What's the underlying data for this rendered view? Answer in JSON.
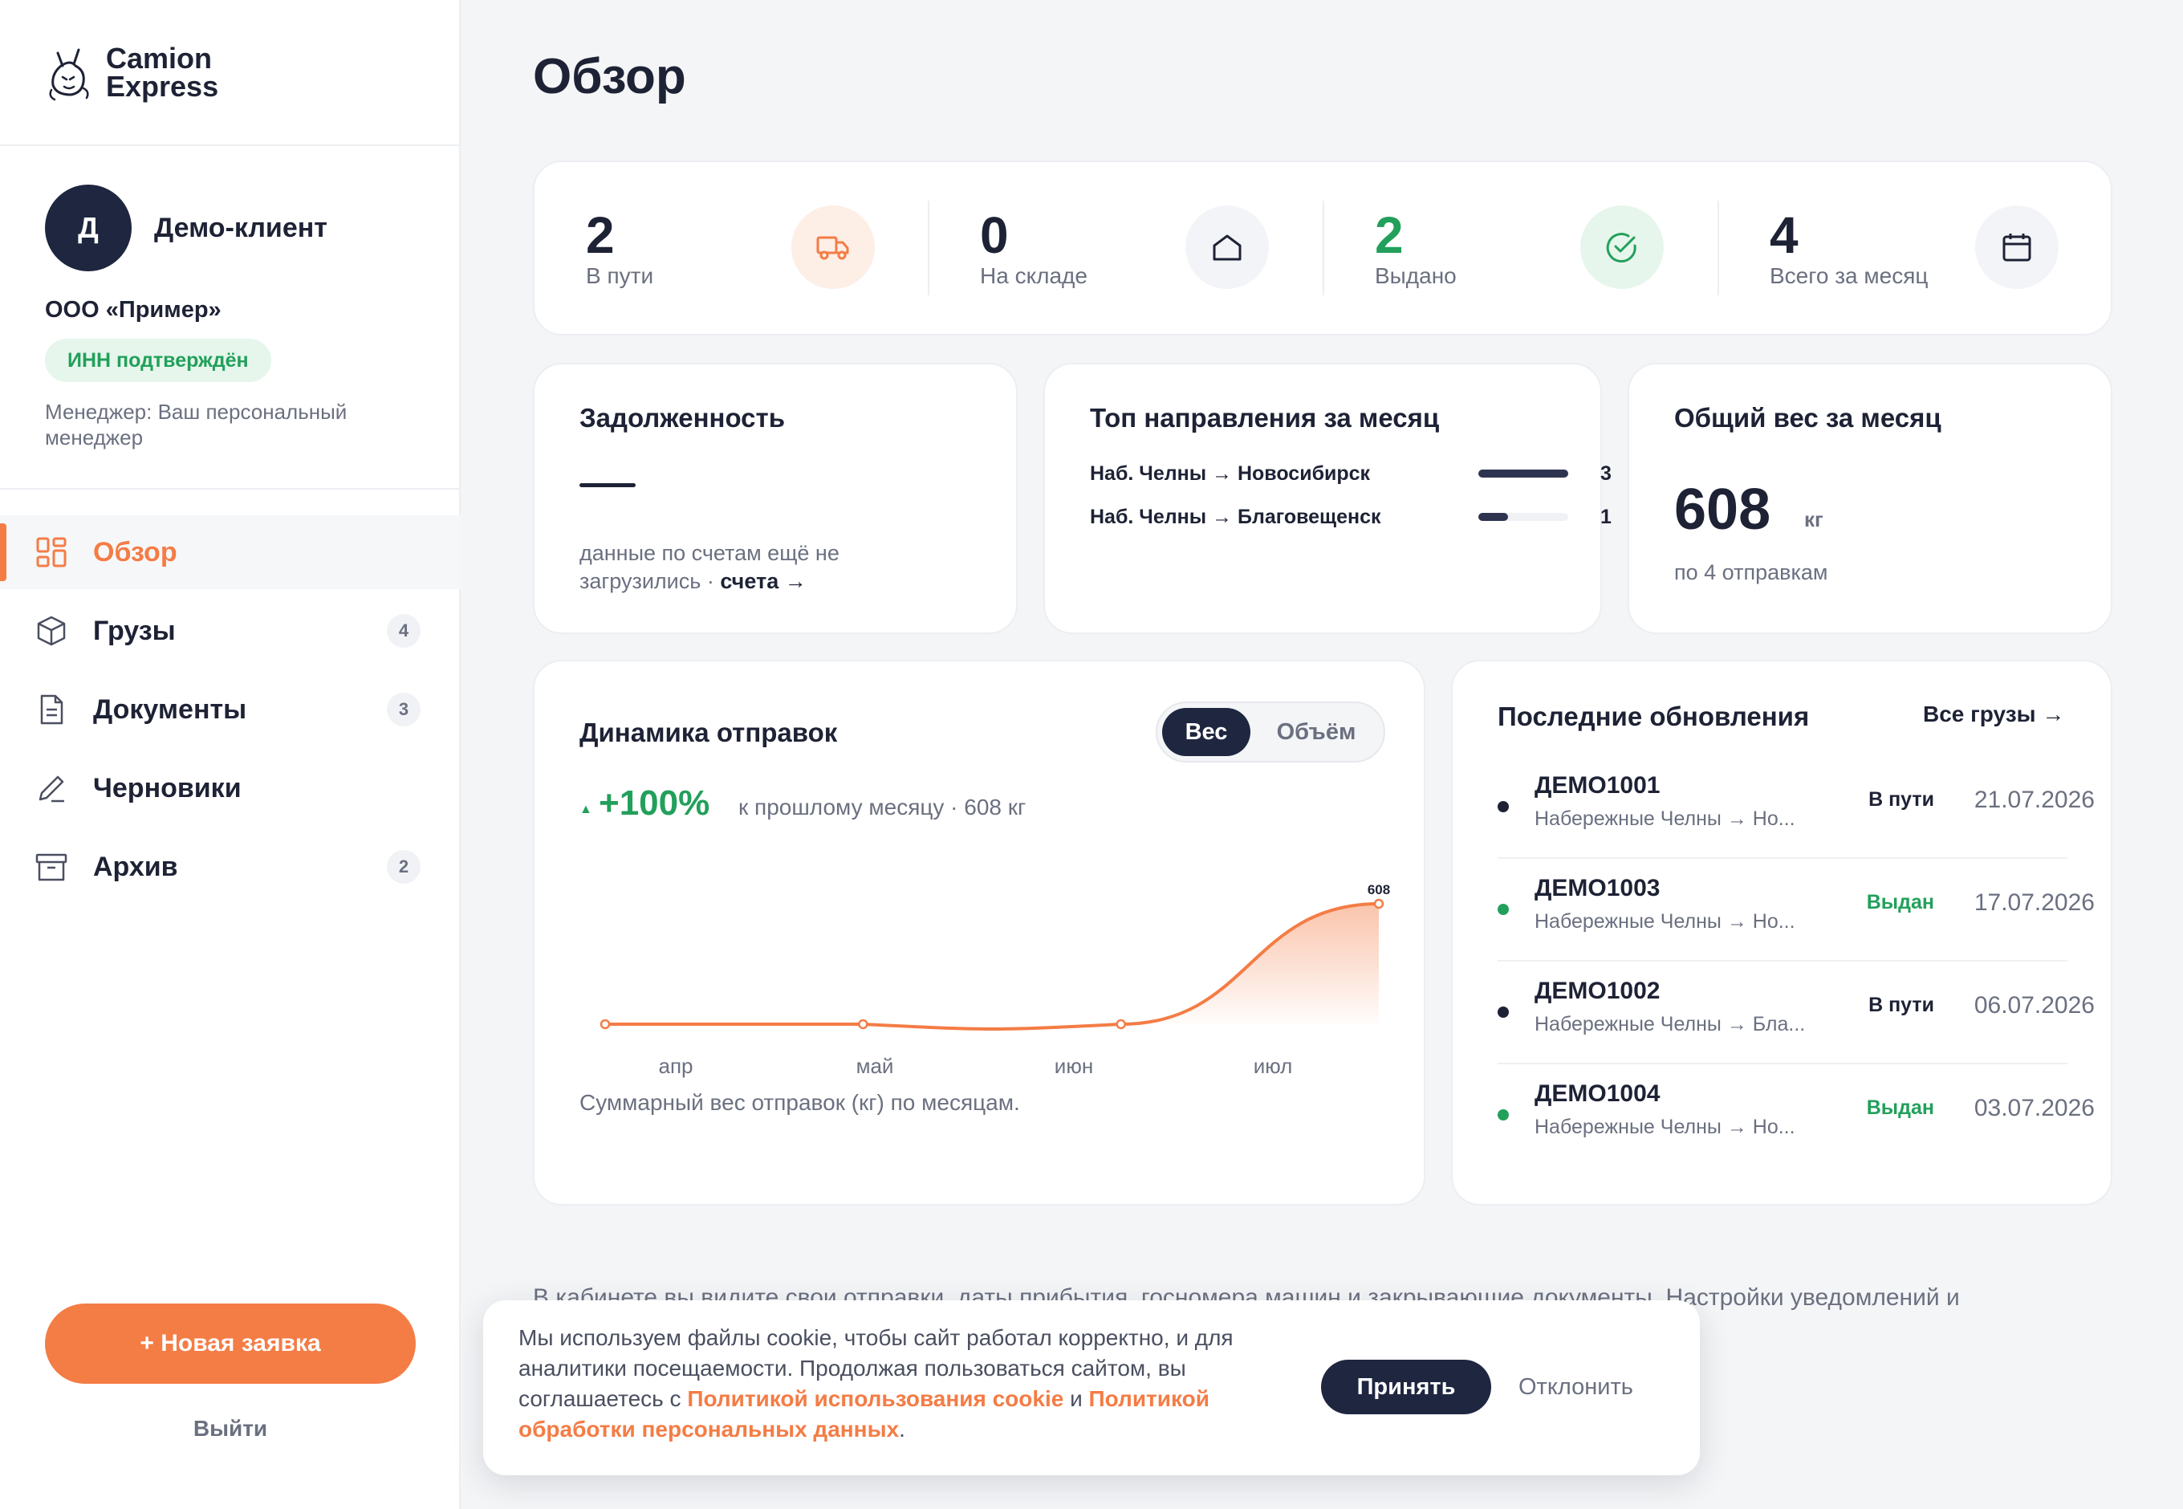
{
  "app": {
    "brand_line1": "Camion",
    "brand_line2": "Express"
  },
  "profile": {
    "avatar_letter": "Д",
    "name": "Демо-клиент",
    "company": "ООО «Пример»",
    "inn_badge": "ИНН подтверждён",
    "manager": "Менеджер: Ваш персональный менеджер"
  },
  "nav": [
    {
      "label": "Обзор",
      "icon": "dashboard-icon",
      "active": true,
      "count": null
    },
    {
      "label": "Грузы",
      "icon": "box-icon",
      "active": false,
      "count": "4"
    },
    {
      "label": "Документы",
      "icon": "document-icon",
      "active": false,
      "count": "3"
    },
    {
      "label": "Черновики",
      "icon": "pencil-icon",
      "active": false,
      "count": null
    },
    {
      "label": "Архив",
      "icon": "archive-icon",
      "active": false,
      "count": "2"
    }
  ],
  "sidebar": {
    "new_request": "+ Новая заявка",
    "logout": "Выйти"
  },
  "page": {
    "title": "Обзор"
  },
  "stats": [
    {
      "value": "2",
      "label": "В пути",
      "icon": "truck-icon",
      "color": "#f47c45"
    },
    {
      "value": "0",
      "label": "На складе",
      "icon": "warehouse-icon",
      "color": "#1e2235"
    },
    {
      "value": "2",
      "label": "Выдано",
      "icon": "check-circle-icon",
      "color": "#22a05b"
    },
    {
      "value": "4",
      "label": "Всего за месяц",
      "icon": "calendar-icon",
      "color": "#1e2235"
    }
  ],
  "debt": {
    "title": "Задолженность",
    "value": "—",
    "note": "данные по счетам ещё не загрузились · ",
    "link": "счета →"
  },
  "routes": {
    "title": "Топ направления за месяц",
    "items": [
      {
        "name": "Наб. Челны → Новосибирск",
        "count": 3,
        "count_label": "3"
      },
      {
        "name": "Наб. Челны → Благовещенск",
        "count": 1,
        "count_label": "1"
      }
    ]
  },
  "weight": {
    "title": "Общий вес за месяц",
    "value": "608",
    "unit": "кг",
    "sub": "по 4 отправкам"
  },
  "dynamics": {
    "title": "Динамика отправок",
    "toggle_weight": "Вес",
    "toggle_volume": "Объём",
    "growth": "+100%",
    "growth_note": "к прошлому месяцу · 608 кг",
    "caption": "Суммарный вес отправок (кг) по месяцам."
  },
  "chart_data": {
    "type": "area",
    "categories": [
      "апр",
      "май",
      "июн",
      "июл"
    ],
    "values": [
      0,
      0,
      0,
      608
    ],
    "data_labels": [
      "",
      "",
      "",
      "608"
    ],
    "ylim": [
      0,
      608
    ],
    "color": "#f47c45"
  },
  "updates": {
    "title": "Последние обновления",
    "see_all": "Все грузы →",
    "items": [
      {
        "id": "ДЕМО1001",
        "route": "Набережные Челны → Но...",
        "status": "В пути",
        "status_color": "#1e2235",
        "date": "21.07.2026"
      },
      {
        "id": "ДЕМО1003",
        "route": "Набережные Челны → Но...",
        "status": "Выдан",
        "status_color": "#22a05b",
        "date": "17.07.2026"
      },
      {
        "id": "ДЕМО1002",
        "route": "Набережные Челны → Бла...",
        "status": "В пути",
        "status_color": "#1e2235",
        "date": "06.07.2026"
      },
      {
        "id": "ДЕМО1004",
        "route": "Набережные Челны → Но...",
        "status": "Выдан",
        "status_color": "#22a05b",
        "date": "03.07.2026"
      }
    ]
  },
  "info": {
    "text": "В кабинете вы видите свои отправки, даты прибытия, госномера машин и закрывающие документы. Настройки уведомлений и"
  },
  "cookie": {
    "text_part1": "Мы используем файлы cookie, чтобы сайт работал корректно, и для аналитики посещаемости. Продолжая пользоваться сайтом, вы соглашаетесь с ",
    "link1": "Политикой использования cookie",
    "and": " и ",
    "link2": "Политикой обработки персональных данных",
    "end": ".",
    "accept": "Принять",
    "decline": "Отклонить"
  },
  "colors": {
    "accent": "#f47c45",
    "dark": "#1e2640",
    "success": "#22a05b"
  }
}
